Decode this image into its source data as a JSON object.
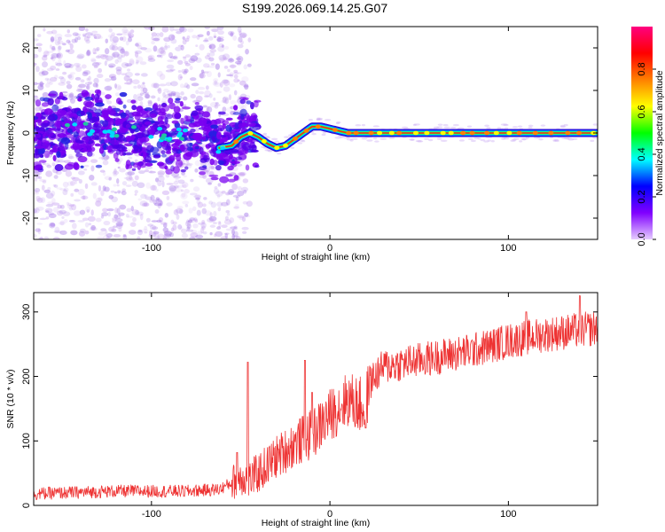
{
  "title": "S199.2026.069.14.25.G07",
  "chart_data": [
    {
      "type": "heatmap",
      "xlabel": "Height of straight line (km)",
      "ylabel": "Frequency (Hz)",
      "xlim": [
        -166,
        150
      ],
      "ylim": [
        -25,
        25
      ],
      "xticks": [
        -100,
        0,
        100
      ],
      "yticks": [
        -20,
        -10,
        0,
        10,
        20
      ],
      "colorbar": {
        "label": "Normalized spectral amplitude",
        "range": [
          0,
          1
        ],
        "ticks": [
          0.0,
          0.2,
          0.4,
          0.6,
          0.8
        ],
        "colors": [
          "#e6ccff",
          "#8000ff",
          "#0000ff",
          "#00ffff",
          "#00ff00",
          "#ffff00",
          "#ff8000",
          "#ff0000",
          "#ff0080"
        ]
      },
      "ridge": {
        "x": [
          -166,
          -150,
          -130,
          -110,
          -90,
          -75,
          -62,
          -55,
          -50,
          -45,
          -40,
          -35,
          -30,
          -25,
          -20,
          -15,
          -10,
          -5,
          0,
          5,
          10,
          20,
          40,
          60,
          80,
          100,
          120,
          150
        ],
        "y": [
          0,
          0.5,
          1,
          0,
          -0.5,
          0,
          -3.5,
          -3,
          -1,
          0,
          -1,
          -2.5,
          -3.5,
          -3,
          -1.5,
          0,
          1.5,
          1.5,
          1,
          0.5,
          0,
          0,
          0,
          0,
          0,
          0,
          0,
          0
        ]
      }
    },
    {
      "type": "line",
      "xlabel": "Height of straight line (km)",
      "ylabel": "SNR (10 * v/v)",
      "xlim": [
        -166,
        150
      ],
      "ylim": [
        0,
        330
      ],
      "xticks": [
        -100,
        0,
        100
      ],
      "yticks": [
        0,
        100,
        200,
        300
      ],
      "color": "#ee3333",
      "trend": {
        "x": [
          -166,
          -120,
          -80,
          -62,
          -55,
          -50,
          -45,
          -40,
          -30,
          -20,
          -10,
          0,
          10,
          20,
          22,
          30,
          50,
          80,
          100,
          120,
          150
        ],
        "y": [
          18,
          22,
          22,
          25,
          35,
          45,
          40,
          50,
          75,
          95,
          110,
          140,
          165,
          150,
          190,
          215,
          225,
          240,
          255,
          265,
          275
        ]
      },
      "spikes": [
        {
          "x": -52,
          "y": 82
        },
        {
          "x": -46,
          "y": 222
        },
        {
          "x": -14,
          "y": 225
        },
        {
          "x": -10,
          "y": 175
        },
        {
          "x": 20,
          "y": 120
        },
        {
          "x": 110,
          "y": 300
        },
        {
          "x": 140,
          "y": 325
        }
      ]
    }
  ]
}
